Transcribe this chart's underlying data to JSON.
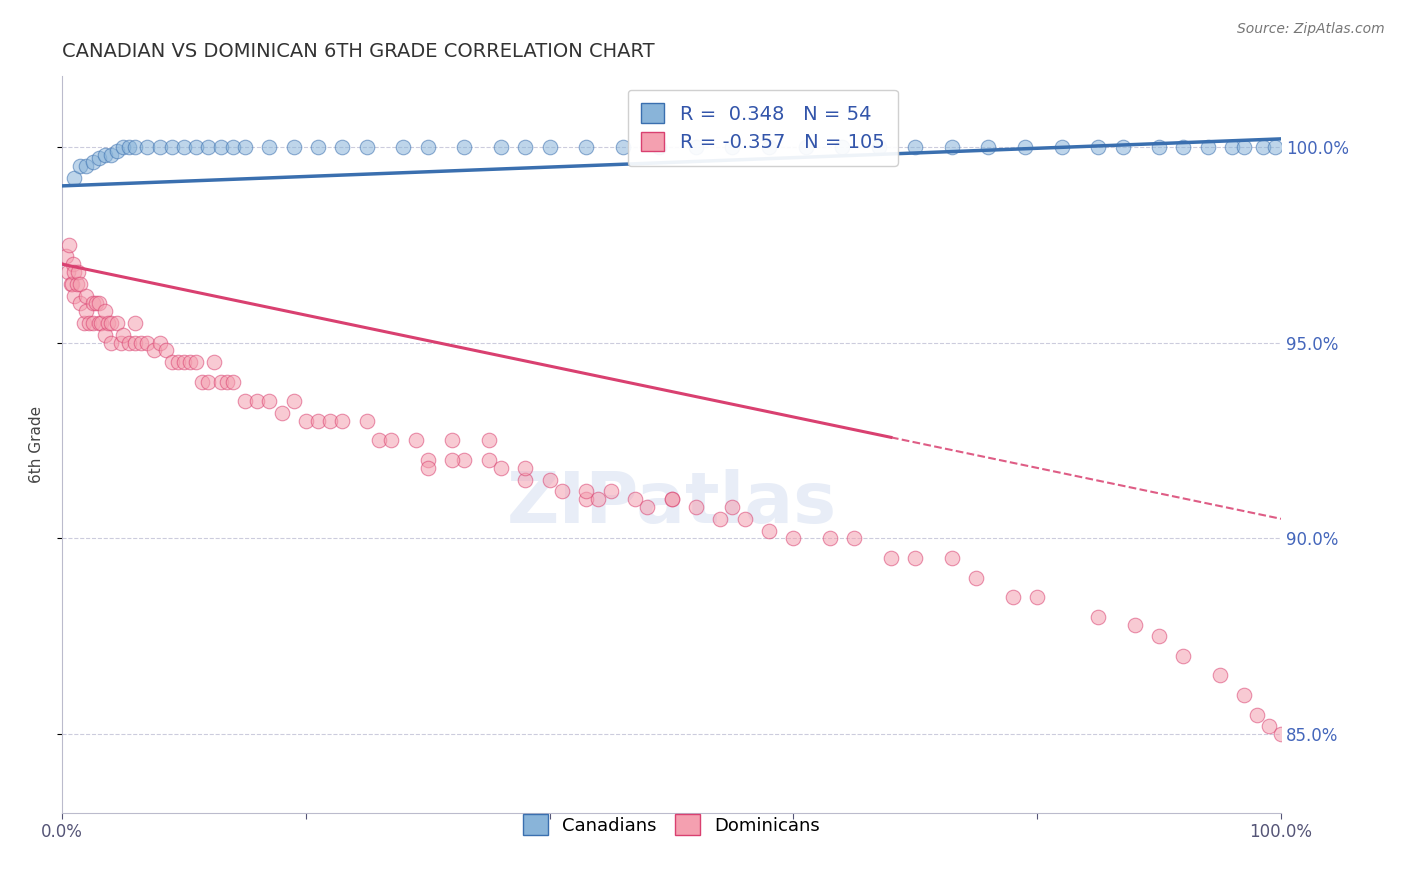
{
  "title": "CANADIAN VS DOMINICAN 6TH GRADE CORRELATION CHART",
  "source": "Source: ZipAtlas.com",
  "ylabel": "6th Grade",
  "right_yticks": [
    85.0,
    90.0,
    95.0,
    100.0
  ],
  "xlim": [
    0.0,
    100.0
  ],
  "ylim": [
    83.0,
    101.8
  ],
  "canadian_R": 0.348,
  "canadian_N": 54,
  "dominican_R": -0.357,
  "dominican_N": 105,
  "blue_color": "#89b4d9",
  "pink_color": "#f4a0b0",
  "blue_line_color": "#3a6faf",
  "pink_line_color": "#d94070",
  "watermark": "ZIPatlas",
  "canadian_x": [
    1.0,
    1.5,
    2.0,
    2.5,
    3.0,
    3.5,
    4.0,
    4.5,
    5.0,
    5.5,
    6.0,
    7.0,
    8.0,
    9.0,
    10.0,
    11.0,
    12.0,
    13.0,
    14.0,
    15.0,
    17.0,
    19.0,
    21.0,
    23.0,
    25.0,
    28.0,
    30.0,
    33.0,
    36.0,
    38.0,
    40.0,
    43.0,
    46.0,
    49.0,
    52.0,
    55.0,
    58.0,
    61.0,
    64.0,
    67.0,
    70.0,
    73.0,
    76.0,
    79.0,
    82.0,
    85.0,
    87.0,
    90.0,
    92.0,
    94.0,
    96.0,
    97.0,
    98.5,
    99.5
  ],
  "canadian_y": [
    99.2,
    99.5,
    99.5,
    99.6,
    99.7,
    99.8,
    99.8,
    99.9,
    100.0,
    100.0,
    100.0,
    100.0,
    100.0,
    100.0,
    100.0,
    100.0,
    100.0,
    100.0,
    100.0,
    100.0,
    100.0,
    100.0,
    100.0,
    100.0,
    100.0,
    100.0,
    100.0,
    100.0,
    100.0,
    100.0,
    100.0,
    100.0,
    100.0,
    100.0,
    100.0,
    100.0,
    100.0,
    100.0,
    100.0,
    100.0,
    100.0,
    100.0,
    100.0,
    100.0,
    100.0,
    100.0,
    100.0,
    100.0,
    100.0,
    100.0,
    100.0,
    100.0,
    100.0,
    100.0
  ],
  "dominican_x": [
    0.3,
    0.5,
    0.6,
    0.7,
    0.8,
    0.9,
    1.0,
    1.0,
    1.2,
    1.3,
    1.5,
    1.5,
    1.8,
    2.0,
    2.0,
    2.2,
    2.5,
    2.5,
    2.8,
    3.0,
    3.0,
    3.2,
    3.5,
    3.5,
    3.8,
    4.0,
    4.0,
    4.5,
    4.8,
    5.0,
    5.5,
    6.0,
    6.0,
    6.5,
    7.0,
    7.5,
    8.0,
    8.5,
    9.0,
    9.5,
    10.0,
    10.5,
    11.0,
    11.5,
    12.0,
    12.5,
    13.0,
    13.5,
    14.0,
    15.0,
    16.0,
    17.0,
    18.0,
    19.0,
    20.0,
    21.0,
    22.0,
    23.0,
    25.0,
    26.0,
    27.0,
    29.0,
    30.0,
    32.0,
    33.0,
    35.0,
    36.0,
    38.0,
    40.0,
    41.0,
    43.0,
    44.0,
    45.0,
    47.0,
    48.0,
    50.0,
    52.0,
    54.0,
    56.0,
    58.0,
    60.0,
    63.0,
    65.0,
    68.0,
    70.0,
    73.0,
    75.0,
    78.0,
    80.0,
    85.0,
    88.0,
    90.0,
    92.0,
    95.0,
    97.0,
    98.0,
    99.0,
    100.0,
    30.0,
    32.0,
    35.0,
    38.0,
    43.0,
    50.0,
    55.0
  ],
  "dominican_y": [
    97.2,
    96.8,
    97.5,
    96.5,
    96.5,
    97.0,
    96.2,
    96.8,
    96.5,
    96.8,
    96.0,
    96.5,
    95.5,
    96.2,
    95.8,
    95.5,
    96.0,
    95.5,
    96.0,
    95.5,
    96.0,
    95.5,
    95.8,
    95.2,
    95.5,
    95.5,
    95.0,
    95.5,
    95.0,
    95.2,
    95.0,
    95.5,
    95.0,
    95.0,
    95.0,
    94.8,
    95.0,
    94.8,
    94.5,
    94.5,
    94.5,
    94.5,
    94.5,
    94.0,
    94.0,
    94.5,
    94.0,
    94.0,
    94.0,
    93.5,
    93.5,
    93.5,
    93.2,
    93.5,
    93.0,
    93.0,
    93.0,
    93.0,
    93.0,
    92.5,
    92.5,
    92.5,
    92.0,
    92.5,
    92.0,
    92.0,
    91.8,
    91.5,
    91.5,
    91.2,
    91.0,
    91.0,
    91.2,
    91.0,
    90.8,
    91.0,
    90.8,
    90.5,
    90.5,
    90.2,
    90.0,
    90.0,
    90.0,
    89.5,
    89.5,
    89.5,
    89.0,
    88.5,
    88.5,
    88.0,
    87.8,
    87.5,
    87.0,
    86.5,
    86.0,
    85.5,
    85.2,
    85.0,
    91.8,
    92.0,
    92.5,
    91.8,
    91.2,
    91.0,
    90.8
  ],
  "dom_trend_solid_end": 68.0,
  "dom_trend_start_y": 97.0,
  "dom_trend_end_y": 90.5,
  "can_trend_start_y": 99.0,
  "can_trend_end_y": 100.2
}
